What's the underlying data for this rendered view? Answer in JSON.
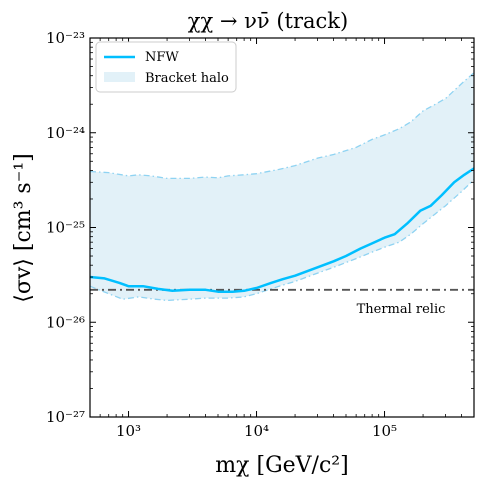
{
  "chart_data": {
    "type": "line",
    "title": "χχ → νν̄ (track)",
    "xlabel": "mχ [GeV/c²]",
    "ylabel": "⟨σv⟩ [cm³ s⁻¹]",
    "xscale": "log",
    "yscale": "log",
    "xlim": [
      500,
      500000
    ],
    "ylim": [
      1e-27,
      1e-23
    ],
    "x_ticks": [
      {
        "value": 1000,
        "label": "10³"
      },
      {
        "value": 10000,
        "label": "10⁴"
      },
      {
        "value": 100000,
        "label": "10⁵"
      }
    ],
    "y_ticks": [
      {
        "value": 1e-27,
        "label": "10⁻²⁷"
      },
      {
        "value": 1e-26,
        "label": "10⁻²⁶"
      },
      {
        "value": 1e-25,
        "label": "10⁻²⁵"
      },
      {
        "value": 1e-24,
        "label": "10⁻²⁴"
      },
      {
        "value": 1e-23,
        "label": "10⁻²³"
      }
    ],
    "legend": {
      "position": "top-left",
      "entries": [
        {
          "label": "NFW",
          "kind": "line",
          "color": "#00BFFF"
        },
        {
          "label": "Bracket halo",
          "kind": "band",
          "color": "#E2F1F8"
        }
      ]
    },
    "series": [
      {
        "name": "NFW",
        "color": "#00BFFF",
        "points": [
          [
            500,
            3e-26
          ],
          [
            650,
            2.9e-26
          ],
          [
            850,
            2.6e-26
          ],
          [
            1000,
            2.4e-26
          ],
          [
            1300,
            2.4e-26
          ],
          [
            1700,
            2.25e-26
          ],
          [
            2200,
            2.15e-26
          ],
          [
            3000,
            2.2e-26
          ],
          [
            4000,
            2.2e-26
          ],
          [
            5000,
            2.1e-26
          ],
          [
            6500,
            2.1e-26
          ],
          [
            8000,
            2.15e-26
          ],
          [
            10000,
            2.3e-26
          ],
          [
            13000,
            2.6e-26
          ],
          [
            16000,
            2.85e-26
          ],
          [
            20000,
            3.1e-26
          ],
          [
            30000,
            3.8e-26
          ],
          [
            40000,
            4.4e-26
          ],
          [
            50000,
            5e-26
          ],
          [
            65000,
            6e-26
          ],
          [
            80000,
            6.8e-26
          ],
          [
            100000,
            7.8e-26
          ],
          [
            120000,
            8.5e-26
          ],
          [
            150000,
            1.1e-25
          ],
          [
            190000,
            1.5e-25
          ],
          [
            230000,
            1.7e-25
          ],
          [
            280000,
            2.2e-25
          ],
          [
            350000,
            3e-25
          ],
          [
            420000,
            3.6e-25
          ],
          [
            500000,
            4.2e-25
          ]
        ]
      }
    ],
    "band": {
      "name": "Bracket halo",
      "fill": "#E2F1F8",
      "edge_color": "#8FD3F2",
      "upper": [
        [
          500,
          3.9e-25
        ],
        [
          700,
          3.8e-25
        ],
        [
          1000,
          3.5e-25
        ],
        [
          1200,
          3.6e-25
        ],
        [
          1500,
          3.5e-25
        ],
        [
          2000,
          3.3e-25
        ],
        [
          2500,
          3.3e-25
        ],
        [
          3000,
          3.3e-25
        ],
        [
          4000,
          3.4e-25
        ],
        [
          5000,
          3.35e-25
        ],
        [
          6000,
          3.5e-25
        ],
        [
          8000,
          3.6e-25
        ],
        [
          10000,
          3.7e-25
        ],
        [
          15000,
          4.1e-25
        ],
        [
          20000,
          4.5e-25
        ],
        [
          30000,
          5.4e-25
        ],
        [
          40000,
          5.9e-25
        ],
        [
          60000,
          7e-25
        ],
        [
          80000,
          8.5e-25
        ],
        [
          100000,
          9.5e-25
        ],
        [
          130000,
          1.1e-24
        ],
        [
          160000,
          1.3e-24
        ],
        [
          200000,
          1.7e-24
        ],
        [
          250000,
          2e-24
        ],
        [
          300000,
          2.3e-24
        ],
        [
          400000,
          3.3e-24
        ],
        [
          500000,
          4.3e-24
        ]
      ],
      "lower": [
        [
          500,
          2.4e-26
        ],
        [
          700,
          2e-26
        ],
        [
          900,
          1.75e-26
        ],
        [
          1200,
          1.85e-26
        ],
        [
          1600,
          1.75e-26
        ],
        [
          2000,
          1.7e-26
        ],
        [
          3000,
          1.75e-26
        ],
        [
          4000,
          1.8e-26
        ],
        [
          6000,
          1.8e-26
        ],
        [
          8000,
          1.85e-26
        ],
        [
          10000,
          2e-26
        ],
        [
          15000,
          2.4e-26
        ],
        [
          20000,
          2.7e-26
        ],
        [
          30000,
          3.3e-26
        ],
        [
          40000,
          3.8e-26
        ],
        [
          60000,
          4.7e-26
        ],
        [
          80000,
          5.5e-26
        ],
        [
          100000,
          6.2e-26
        ],
        [
          130000,
          7e-26
        ],
        [
          160000,
          8.5e-26
        ],
        [
          200000,
          1.1e-25
        ],
        [
          250000,
          1.4e-25
        ],
        [
          300000,
          1.7e-25
        ],
        [
          400000,
          2.4e-25
        ],
        [
          500000,
          3.2e-25
        ]
      ]
    },
    "reference_line": {
      "label": "Thermal relic",
      "y": 2.2e-26,
      "color": "#555555",
      "style": "dash-dot"
    }
  }
}
